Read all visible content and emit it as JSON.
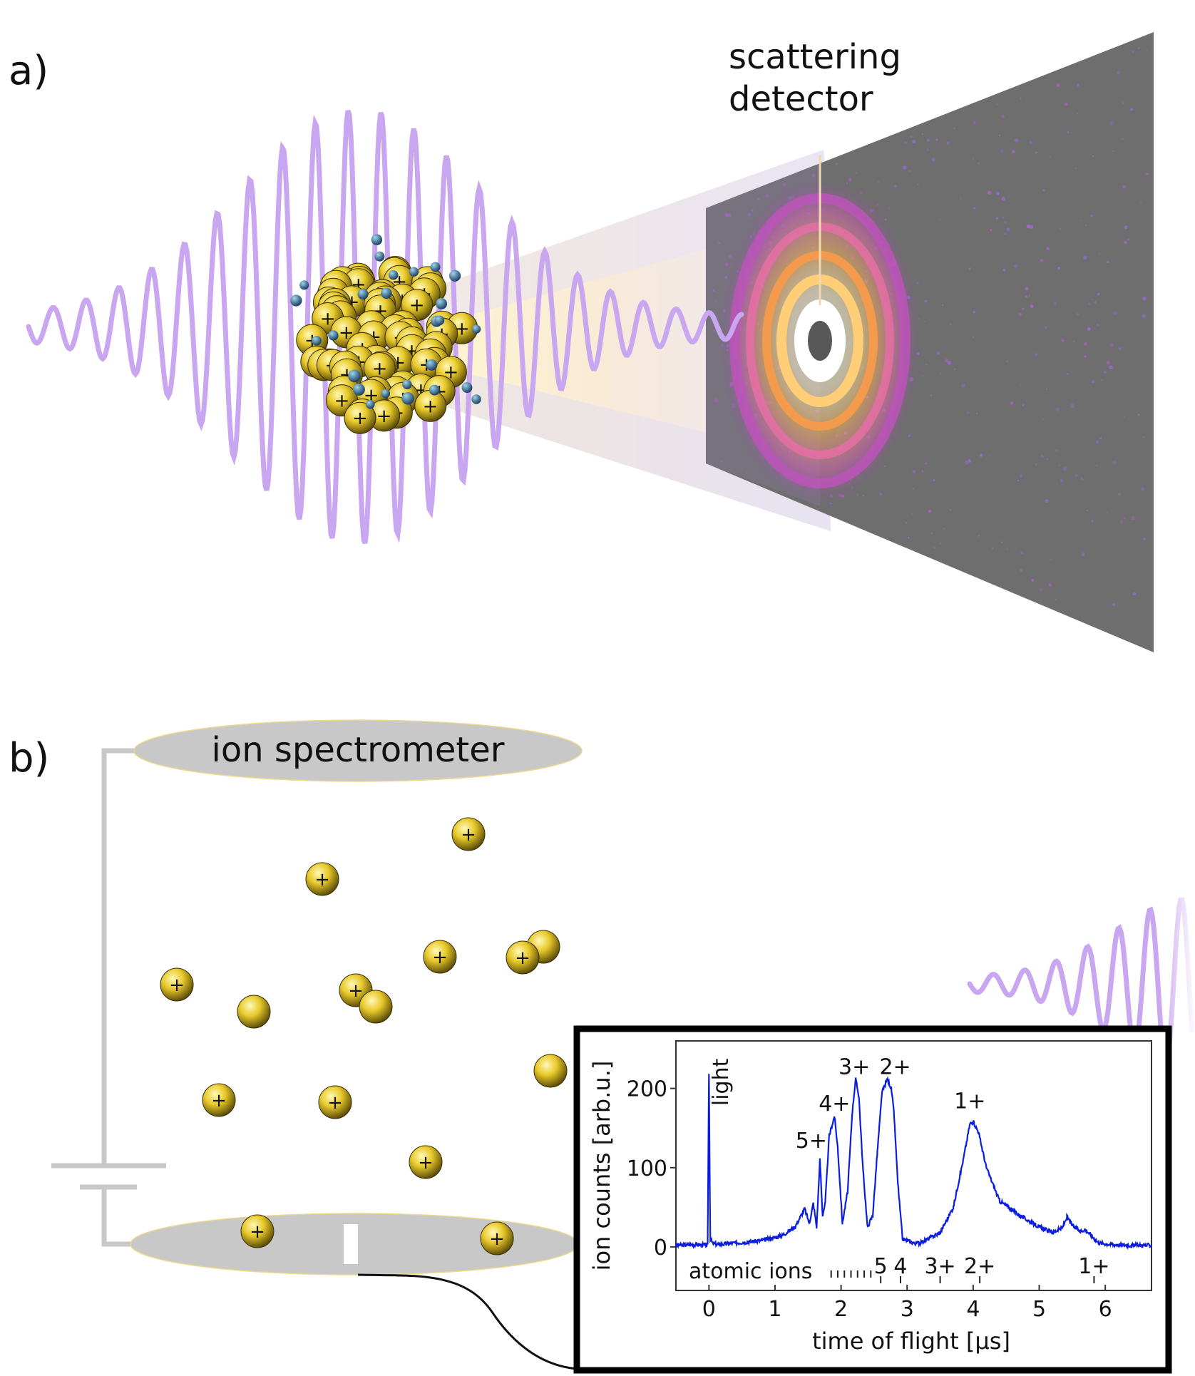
{
  "panel_a": {
    "label": "a)",
    "detector_label_line1": "scattering",
    "detector_label_line2": "detector"
  },
  "panel_b": {
    "label": "b)",
    "spectrometer_label": "ion spectrometer",
    "ion_symbol": "+"
  },
  "colors": {
    "pulse": "#c9a6f0",
    "plate": "#c8c8c8",
    "detector": "#6e6e6e",
    "ion": "#e5c62a",
    "trace": "#0a1de0"
  },
  "chart_data": {
    "type": "line",
    "xlabel": "time of flight [µs]",
    "ylabel": "ion counts [arb.u.]",
    "xlim": [
      -0.5,
      6.7
    ],
    "ylim": [
      -55,
      260
    ],
    "xticks": [
      0,
      1,
      2,
      3,
      4,
      5,
      6
    ],
    "yticks": [
      0,
      100,
      200
    ],
    "series": [
      {
        "values_x": [
          -0.5,
          -0.2,
          -0.02,
          0.0,
          0.02,
          0.06,
          0.15,
          0.4,
          0.8,
          1.1,
          1.3,
          1.45,
          1.52,
          1.58,
          1.63,
          1.68,
          1.72,
          1.76,
          1.82,
          1.9,
          1.95,
          2.02,
          2.1,
          2.17,
          2.22,
          2.27,
          2.33,
          2.4,
          2.48,
          2.55,
          2.62,
          2.7,
          2.76,
          2.8,
          2.86,
          2.93,
          3.0,
          3.1,
          3.2,
          3.5,
          3.7,
          3.85,
          3.95,
          4.0,
          4.08,
          4.2,
          4.4,
          4.7,
          5.0,
          5.2,
          5.35,
          5.42,
          5.5,
          5.62,
          5.7,
          5.78,
          5.9,
          6.1,
          6.4,
          6.7
        ],
        "values_y": [
          2,
          3,
          2,
          218,
          10,
          4,
          3,
          5,
          8,
          14,
          25,
          48,
          30,
          55,
          25,
          110,
          40,
          55,
          140,
          165,
          125,
          30,
          70,
          170,
          212,
          190,
          100,
          25,
          40,
          120,
          195,
          212,
          200,
          170,
          80,
          10,
          8,
          5,
          5,
          18,
          50,
          110,
          155,
          158,
          145,
          100,
          58,
          40,
          25,
          18,
          24,
          38,
          27,
          20,
          22,
          15,
          5,
          3,
          2,
          2
        ]
      }
    ],
    "annotations": [
      {
        "text": "light",
        "x": 0.2,
        "y": 205
      },
      {
        "text": "5+",
        "x": 1.55,
        "y": 125
      },
      {
        "text": "4+",
        "x": 1.9,
        "y": 172
      },
      {
        "text": "3+",
        "x": 2.2,
        "y": 218
      },
      {
        "text": "2+",
        "x": 2.82,
        "y": 218
      },
      {
        "text": "1+",
        "x": 3.95,
        "y": 175
      }
    ],
    "marker_label": "atomic ions",
    "markers": [
      {
        "label": "5",
        "x": 2.6
      },
      {
        "label": "4",
        "x": 2.9
      },
      {
        "label": "3+",
        "x": 3.5
      },
      {
        "label": "2+",
        "x": 4.1
      },
      {
        "label": "1+",
        "x": 5.83
      }
    ],
    "minor_ticks": [
      1.85,
      1.95,
      2.05,
      2.15,
      2.25,
      2.35,
      2.45
    ]
  }
}
